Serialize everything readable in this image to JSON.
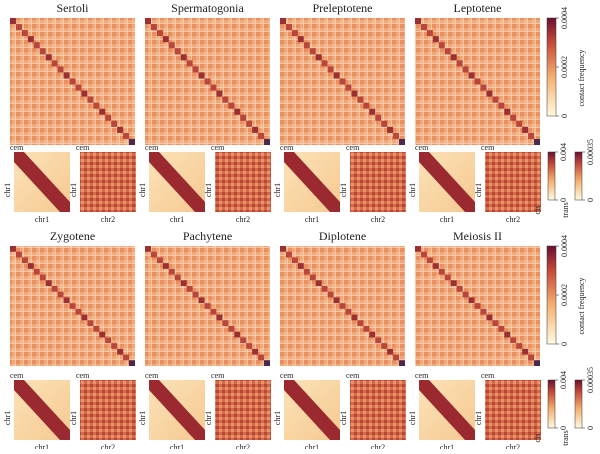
{
  "rows": [
    {
      "titles": [
        "Sertoli",
        "Spermatogonia",
        "Preleptotene",
        "Leptotene"
      ],
      "colorbar": {
        "label": "contact frequency",
        "lim": [
          0,
          0.0004
        ],
        "ticks": [
          0,
          0.0002,
          0.0004
        ]
      },
      "cis": {
        "label": "cis",
        "lim": [
          0,
          0.004
        ],
        "ticks": [
          0,
          0.004
        ]
      },
      "trans": {
        "label": "trans",
        "lim": [
          0,
          0.00035
        ],
        "ticks": [
          0,
          0.00035
        ]
      }
    },
    {
      "titles": [
        "Zygotene",
        "Pachytene",
        "Diplotene",
        "Meiosis II"
      ],
      "colorbar": {
        "label": "contact frequency",
        "lim": [
          0,
          0.0004
        ],
        "ticks": [
          0,
          0.0002,
          0.0004
        ]
      },
      "cis": {
        "label": "cis",
        "lim": [
          0,
          0.004
        ],
        "ticks": [
          0,
          0.004
        ]
      },
      "trans": {
        "label": "trans",
        "lim": [
          0,
          0.00035
        ],
        "ticks": [
          0,
          0.00035
        ]
      }
    }
  ],
  "labels": {
    "cen": "cem",
    "chr1": "chr1",
    "chr2": "chr2"
  }
}
